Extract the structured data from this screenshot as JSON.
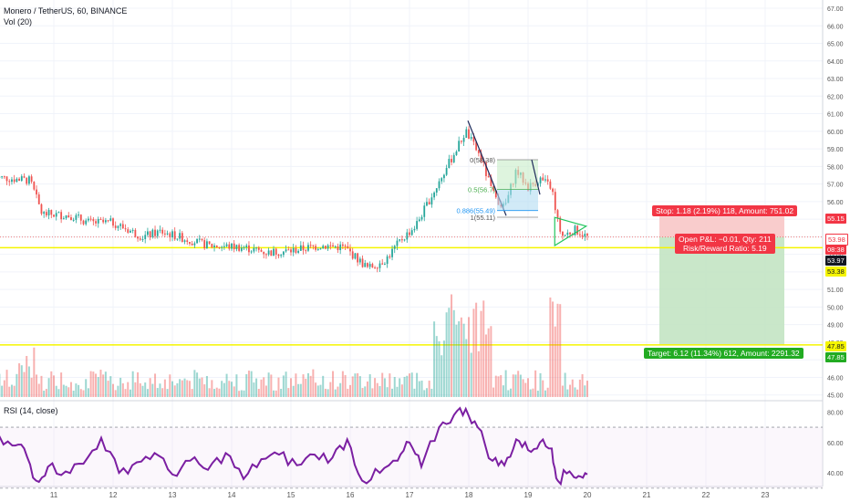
{
  "header": {
    "symbol_line": "Monero / TetherUS, 60, BINANCE",
    "volume_label": "Vol (20)",
    "rsi_label": "RSI (14, close)"
  },
  "position": {
    "stop_label": "Stop: 1.18 (2.19%) 118, Amount: 751.02",
    "open_pnl_label": "Open P&L: −0.01, Qty: 211",
    "risk_reward_label": "Risk/Reward Ratio: 5.19",
    "target_label": "Target: 6.12 (11.34%) 612, Amount: 2291.32"
  },
  "price_tags": {
    "stop": "55.15",
    "current": "53.98",
    "countdown": "08:38",
    "prev": "53.97",
    "support": "53.38",
    "target_line": "47.85",
    "target": "47.85"
  },
  "fib_labels": [
    "0(58.38)",
    "0.5(56.7)",
    "0.886(55.49)",
    "1(55.11)"
  ],
  "colors": {
    "up": "#26a69a",
    "down": "#ef5350",
    "rsi": "#7b1fa2",
    "stop_zone": "#f8c3c3",
    "target_zone": "#bfe3bf",
    "horizontal_line": "#f5f500",
    "stop_tag": "#f23645",
    "target_tag": "#22ab22"
  },
  "chart_data": [
    {
      "type": "candlestick",
      "title": "Monero / TetherUS, 60, BINANCE",
      "x": [
        "11",
        "12",
        "13",
        "14",
        "15",
        "16",
        "17",
        "18",
        "19",
        "20",
        "21",
        "22",
        "23"
      ],
      "ylim": [
        45,
        67.5
      ],
      "y_ticks": [
        "67.00",
        "66.00",
        "65.00",
        "64.00",
        "63.00",
        "62.00",
        "61.00",
        "60.00",
        "59.00",
        "58.00",
        "57.00",
        "56.00",
        "55.00",
        "54.00",
        "53.00",
        "52.00",
        "51.00",
        "50.00",
        "49.00",
        "48.00",
        "47.00",
        "46.00",
        "45.00"
      ],
      "close_path": [
        {
          "day": 10.0,
          "price": 57.4
        },
        {
          "day": 10.6,
          "price": 57.2
        },
        {
          "day": 10.8,
          "price": 55.3
        },
        {
          "day": 11.3,
          "price": 55.2
        },
        {
          "day": 11.6,
          "price": 54.8
        },
        {
          "day": 12.0,
          "price": 54.8
        },
        {
          "day": 12.5,
          "price": 54.0
        },
        {
          "day": 12.8,
          "price": 54.3
        },
        {
          "day": 13.2,
          "price": 53.9
        },
        {
          "day": 13.6,
          "price": 53.5
        },
        {
          "day": 14.2,
          "price": 53.4
        },
        {
          "day": 14.6,
          "price": 53.1
        },
        {
          "day": 15.0,
          "price": 53.2
        },
        {
          "day": 15.5,
          "price": 53.5
        },
        {
          "day": 15.9,
          "price": 53.4
        },
        {
          "day": 16.3,
          "price": 52.2
        },
        {
          "day": 16.6,
          "price": 52.7
        },
        {
          "day": 16.85,
          "price": 53.8
        },
        {
          "day": 17.1,
          "price": 54.6
        },
        {
          "day": 17.4,
          "price": 56.5
        },
        {
          "day": 17.7,
          "price": 58.4
        },
        {
          "day": 17.95,
          "price": 60.0
        },
        {
          "day": 18.2,
          "price": 58.5
        },
        {
          "day": 18.4,
          "price": 56.5
        },
        {
          "day": 18.6,
          "price": 55.6
        },
        {
          "day": 18.8,
          "price": 57.8
        },
        {
          "day": 19.0,
          "price": 56.8
        },
        {
          "day": 19.2,
          "price": 57.3
        },
        {
          "day": 19.4,
          "price": 56.8
        },
        {
          "day": 19.55,
          "price": 54.0
        },
        {
          "day": 19.8,
          "price": 54.4
        },
        {
          "day": 20.0,
          "price": 53.98
        }
      ],
      "last_price": 53.98
    },
    {
      "type": "bar",
      "title": "Vol (20)",
      "note": "volume histogram beneath the price candles; spikes around days 17.5–18.3 and 19.45"
    },
    {
      "type": "line",
      "title": "RSI (14, close)",
      "ylim": [
        30,
        85
      ],
      "y_ticks": [
        "80.00",
        "60.00",
        "40.00"
      ],
      "points": [
        {
          "day": 10.0,
          "value": 62
        },
        {
          "day": 10.3,
          "value": 58
        },
        {
          "day": 10.5,
          "value": 56
        },
        {
          "day": 10.7,
          "value": 35
        },
        {
          "day": 10.9,
          "value": 44
        },
        {
          "day": 11.2,
          "value": 41
        },
        {
          "day": 11.5,
          "value": 46
        },
        {
          "day": 11.8,
          "value": 63
        },
        {
          "day": 12.1,
          "value": 40
        },
        {
          "day": 12.4,
          "value": 47
        },
        {
          "day": 12.7,
          "value": 53
        },
        {
          "day": 13.0,
          "value": 39
        },
        {
          "day": 13.3,
          "value": 48
        },
        {
          "day": 13.6,
          "value": 42
        },
        {
          "day": 13.9,
          "value": 53
        },
        {
          "day": 14.2,
          "value": 36
        },
        {
          "day": 14.5,
          "value": 49
        },
        {
          "day": 14.8,
          "value": 52
        },
        {
          "day": 15.1,
          "value": 45
        },
        {
          "day": 15.4,
          "value": 52
        },
        {
          "day": 15.7,
          "value": 50
        },
        {
          "day": 15.95,
          "value": 62
        },
        {
          "day": 16.2,
          "value": 35
        },
        {
          "day": 16.5,
          "value": 40
        },
        {
          "day": 16.8,
          "value": 48
        },
        {
          "day": 17.0,
          "value": 60
        },
        {
          "day": 17.2,
          "value": 44
        },
        {
          "day": 17.5,
          "value": 70
        },
        {
          "day": 17.75,
          "value": 78
        },
        {
          "day": 17.95,
          "value": 82
        },
        {
          "day": 18.15,
          "value": 70
        },
        {
          "day": 18.4,
          "value": 48
        },
        {
          "day": 18.6,
          "value": 45
        },
        {
          "day": 18.8,
          "value": 62
        },
        {
          "day": 19.0,
          "value": 55
        },
        {
          "day": 19.2,
          "value": 60
        },
        {
          "day": 19.4,
          "value": 56
        },
        {
          "day": 19.5,
          "value": 35
        },
        {
          "day": 19.7,
          "value": 41
        },
        {
          "day": 19.85,
          "value": 38
        },
        {
          "day": 20.0,
          "value": 39
        }
      ]
    }
  ]
}
